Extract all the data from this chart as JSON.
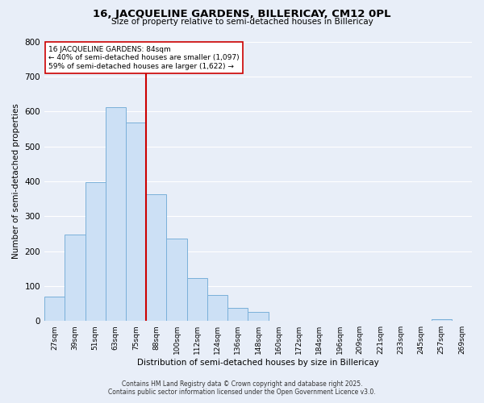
{
  "title": "16, JACQUELINE GARDENS, BILLERICAY, CM12 0PL",
  "subtitle": "Size of property relative to semi-detached houses in Billericay",
  "xlabel": "Distribution of semi-detached houses by size in Billericay",
  "ylabel": "Number of semi-detached properties",
  "bar_labels": [
    "27sqm",
    "39sqm",
    "51sqm",
    "63sqm",
    "75sqm",
    "88sqm",
    "100sqm",
    "112sqm",
    "124sqm",
    "136sqm",
    "148sqm",
    "160sqm",
    "172sqm",
    "184sqm",
    "196sqm",
    "209sqm",
    "221sqm",
    "233sqm",
    "245sqm",
    "257sqm",
    "269sqm"
  ],
  "bar_values": [
    70,
    248,
    397,
    613,
    568,
    362,
    235,
    123,
    74,
    37,
    25,
    0,
    0,
    0,
    0,
    0,
    0,
    0,
    0,
    5,
    0
  ],
  "bar_color": "#cce0f5",
  "bar_edge_color": "#7ab0d9",
  "property_label": "16 JACQUELINE GARDENS: 84sqm",
  "pct_smaller": "40%",
  "count_smaller": "1,097",
  "pct_larger": "59%",
  "count_larger": "1,622",
  "line_color": "#cc0000",
  "annotation_box_color": "#ffffff",
  "annotation_box_edge": "#cc0000",
  "background_color": "#e8eef8",
  "grid_color": "#ffffff",
  "footer_line1": "Contains HM Land Registry data © Crown copyright and database right 2025.",
  "footer_line2": "Contains public sector information licensed under the Open Government Licence v3.0.",
  "ylim": [
    0,
    800
  ],
  "yticks": [
    0,
    100,
    200,
    300,
    400,
    500,
    600,
    700,
    800
  ],
  "red_line_index": 4.5
}
